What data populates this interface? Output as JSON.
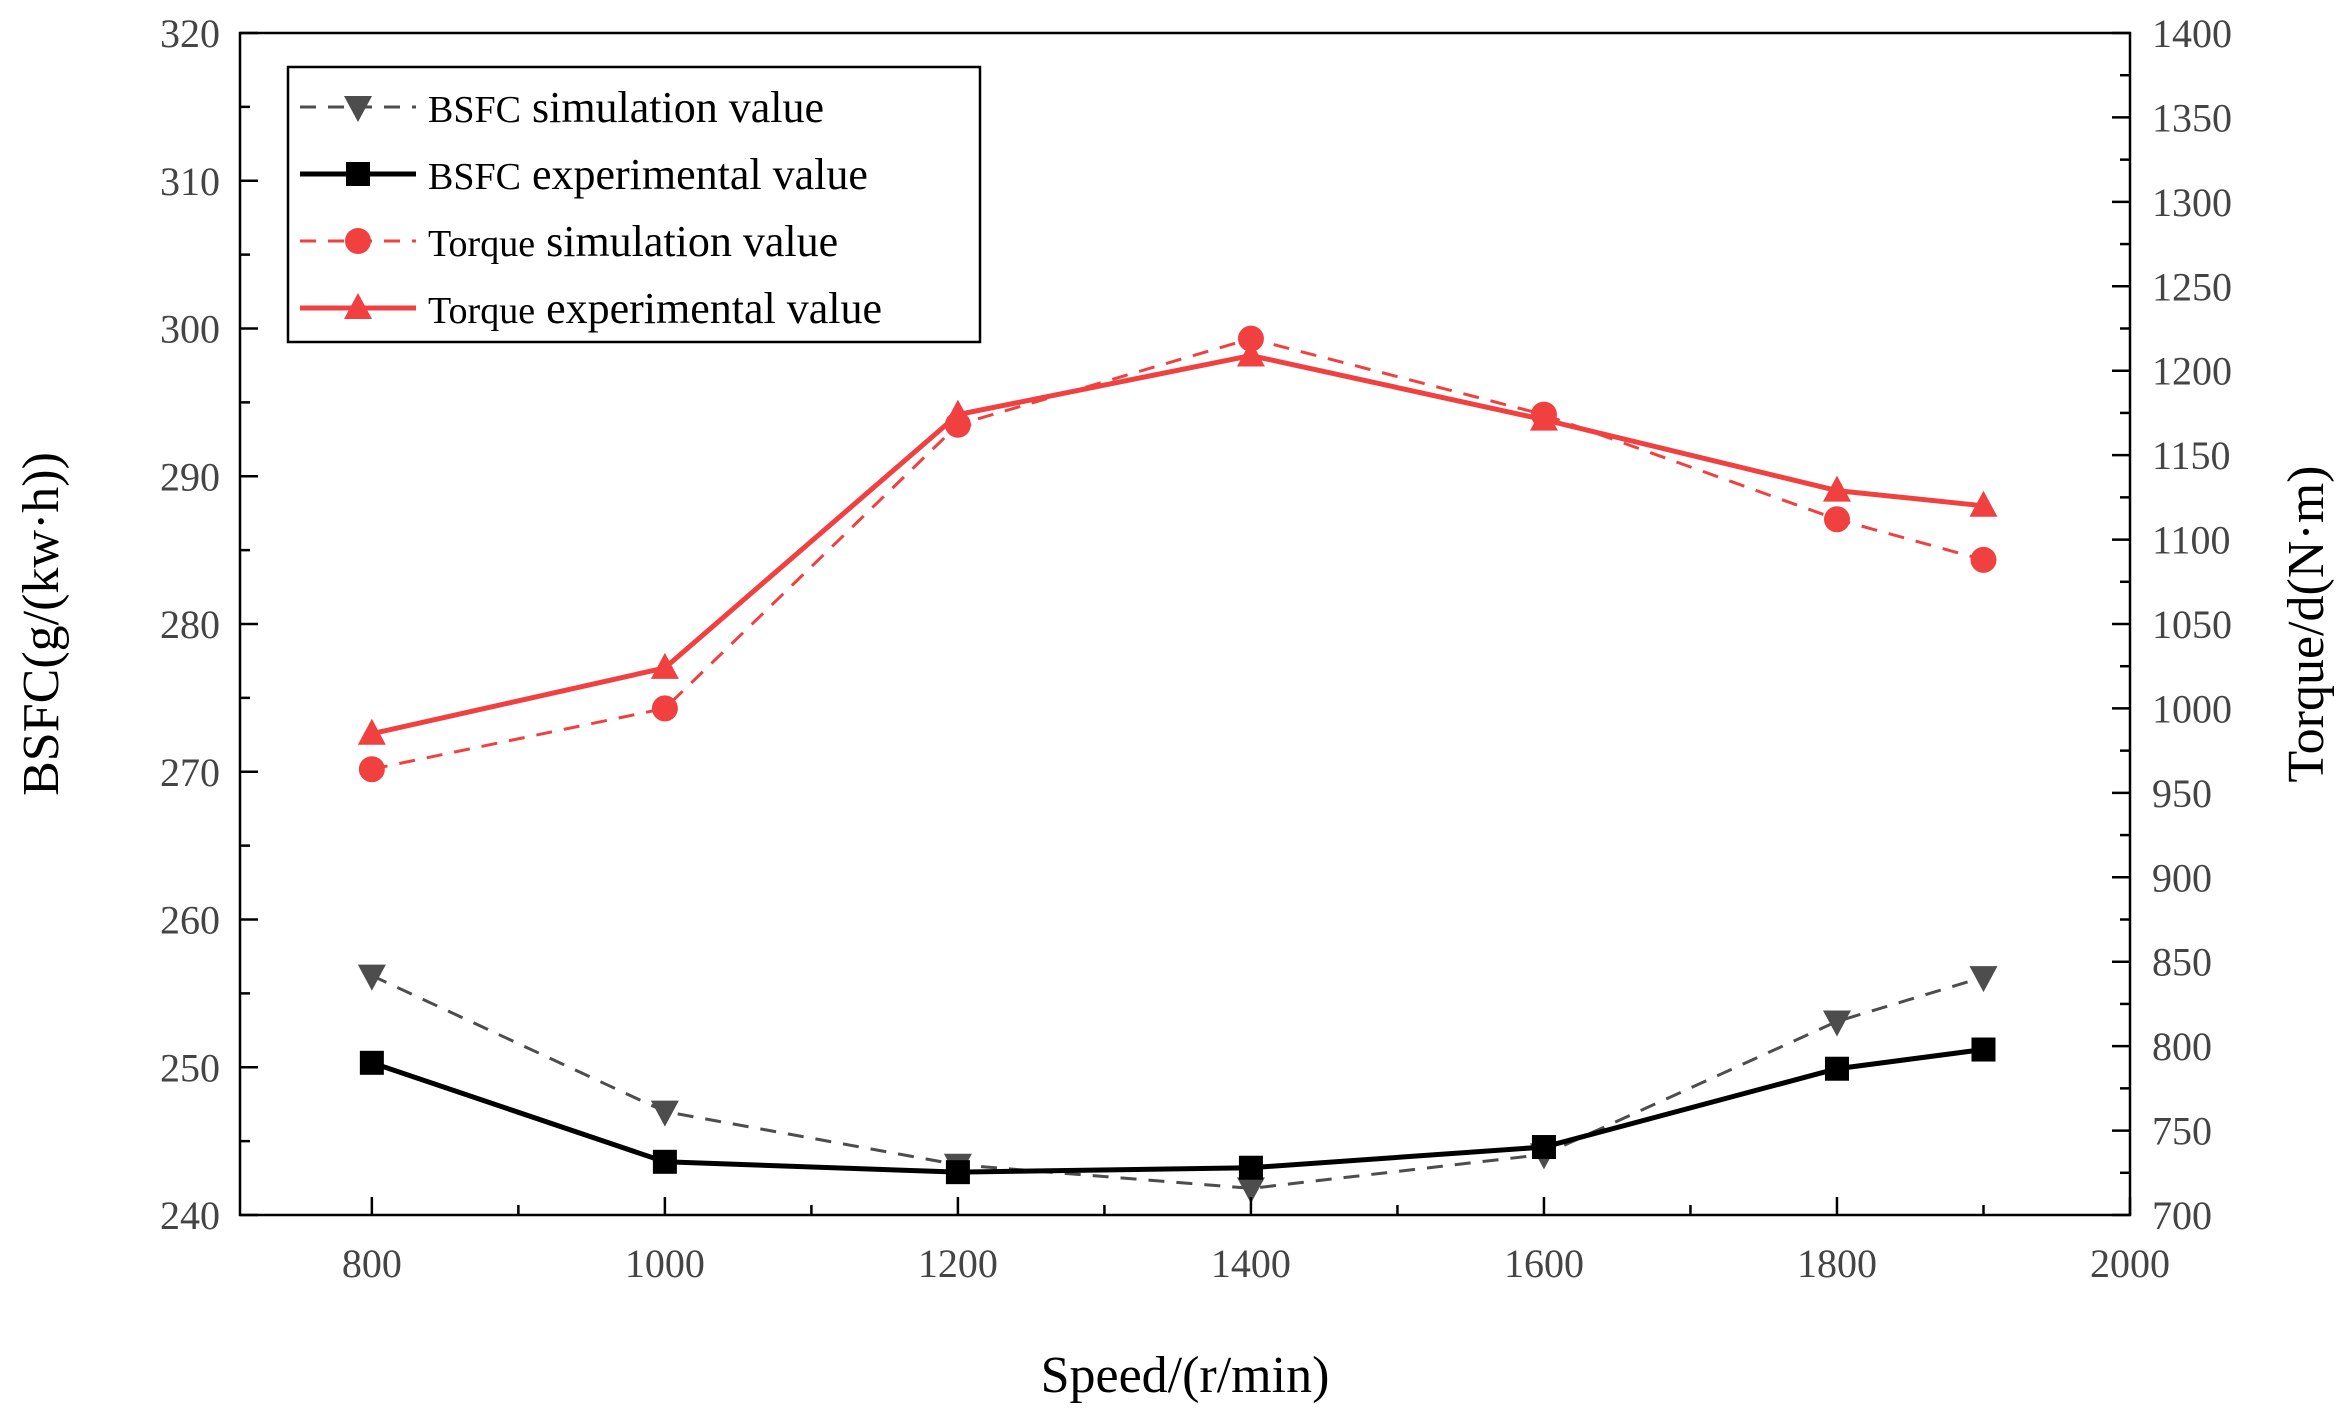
{
  "chart_data": {
    "type": "line",
    "xlabel": "Speed/(r/min)",
    "ylabel_left": "BSFC(g/(kw·h))",
    "ylabel_right": "Torque/d(N·m)",
    "xlim": [
      710,
      2000
    ],
    "ylim_left": [
      240,
      320
    ],
    "ylim_right": [
      700,
      1400
    ],
    "x_ticks": [
      800,
      1000,
      1200,
      1400,
      1600,
      1800,
      2000
    ],
    "y_ticks_left": [
      240,
      250,
      260,
      270,
      280,
      290,
      300,
      310,
      320
    ],
    "y_ticks_right": [
      700,
      750,
      800,
      850,
      900,
      950,
      1000,
      1050,
      1100,
      1150,
      1200,
      1250,
      1300,
      1350,
      1400
    ],
    "x": [
      800,
      1000,
      1200,
      1400,
      1600,
      1800,
      1900
    ],
    "legend_position": "top-left",
    "grid": false,
    "series": [
      {
        "name": "BSFC simulation value",
        "label_prefix": "BSFC",
        "label_suffix": " simulation value",
        "axis": "left",
        "color": "#4d4d4d",
        "dash": true,
        "marker": "triangle-down",
        "values": [
          256.2,
          247.0,
          243.4,
          241.8,
          244.1,
          253.1,
          256.1
        ]
      },
      {
        "name": "BSFC experimental value",
        "label_prefix": "BSFC",
        "label_suffix": " experimental value",
        "axis": "left",
        "color": "#000000",
        "dash": false,
        "marker": "square",
        "values": [
          250.3,
          243.6,
          242.9,
          243.2,
          244.6,
          249.9,
          251.2
        ]
      },
      {
        "name": "Torque simulation value",
        "label_prefix": "Torque",
        "label_suffix": " simulation value",
        "axis": "right",
        "color": "#f04040",
        "dash": true,
        "marker": "circle",
        "values": [
          964,
          1000,
          1168,
          1219,
          1174,
          1112,
          1088
        ]
      },
      {
        "name": "Torque experimental value",
        "label_prefix": "Torque",
        "label_suffix": " experimental value",
        "axis": "right",
        "color": "#f04040",
        "dash": false,
        "marker": "triangle-up",
        "values": [
          985,
          1024,
          1174,
          1209,
          1171,
          1129,
          1120
        ]
      }
    ]
  }
}
